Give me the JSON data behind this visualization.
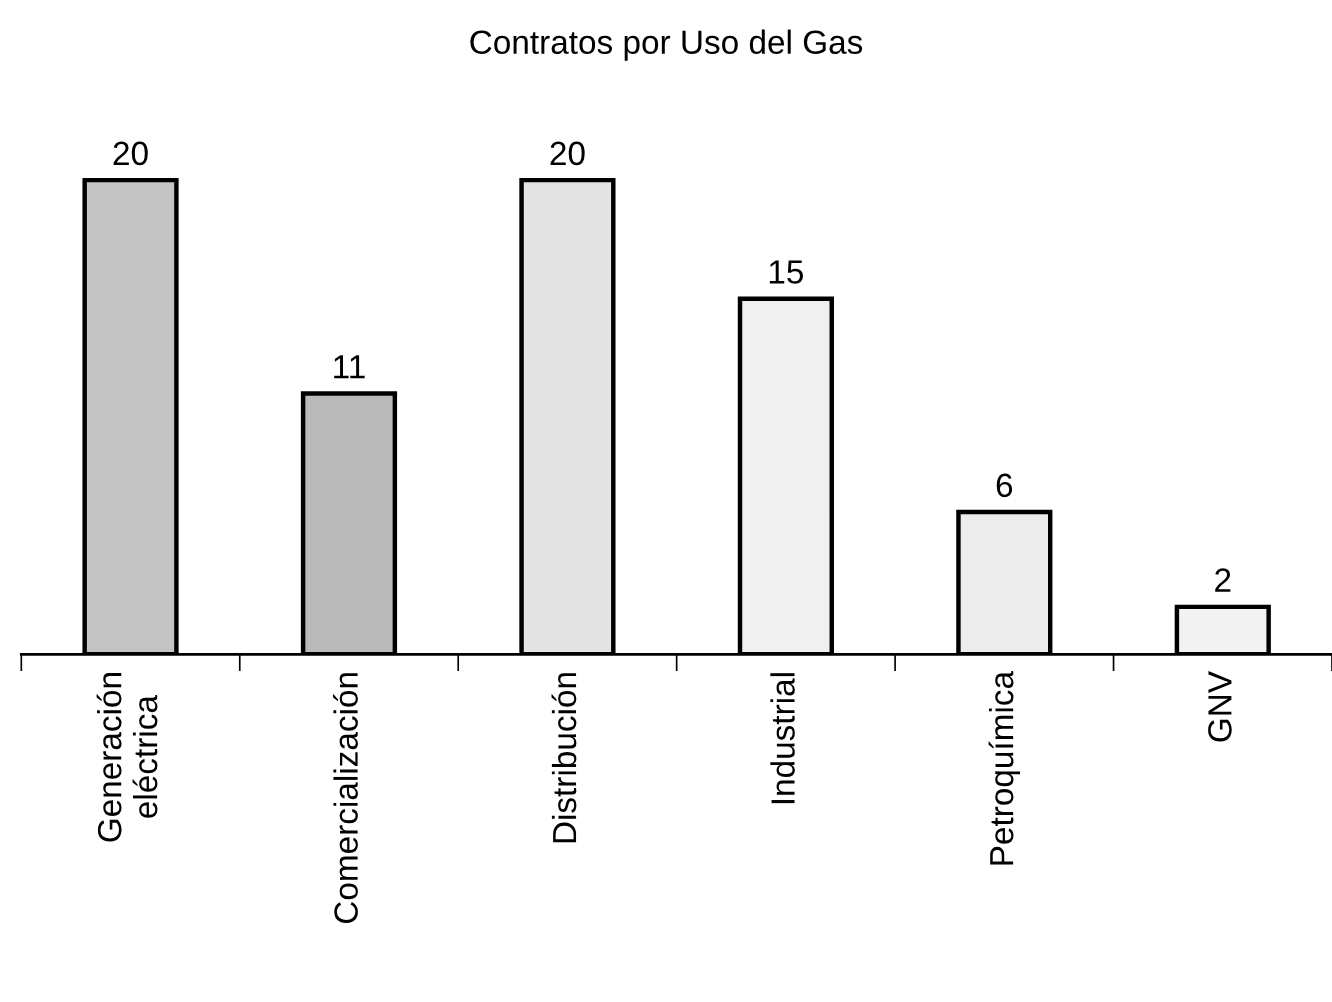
{
  "chart_data": {
    "type": "bar",
    "title": "Contratos por Uso del Gas",
    "categories": [
      "Generación\neléctrica",
      "Comercialización",
      "Distribución",
      "Industrial",
      "Petroquímica",
      "GNV"
    ],
    "values": [
      20,
      11,
      20,
      15,
      6,
      2
    ],
    "colors": [
      "#c4c4c4",
      "#bababa",
      "#e4e4e4",
      "#f0f0f0",
      "#ececec",
      "#f2f2f2"
    ],
    "data_labels": true,
    "tick_labels": "x",
    "grid": false,
    "legend": false
  }
}
